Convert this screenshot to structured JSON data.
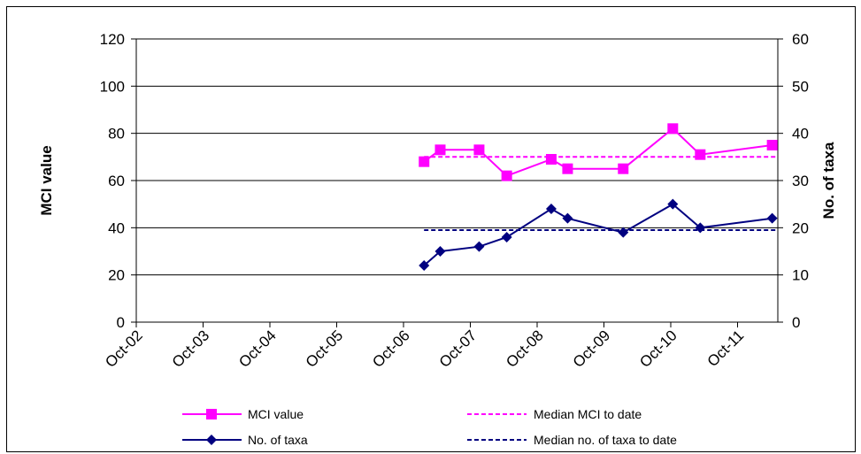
{
  "chart_data": {
    "type": "line",
    "x_categories": [
      "Oct-02",
      "Oct-03",
      "Oct-04",
      "Oct-05",
      "Oct-06",
      "Oct-07",
      "Oct-08",
      "Oct-09",
      "Oct-10",
      "Oct-11"
    ],
    "x_range": [
      "2002-10-01",
      "2012-06-01"
    ],
    "y_left": {
      "label": "MCI value",
      "ticks": [
        "0",
        "20",
        "40",
        "60",
        "80",
        "100",
        "120"
      ],
      "ylim": [
        0,
        120
      ]
    },
    "y_right": {
      "label": "No. of taxa",
      "ticks": [
        "0",
        "10",
        "20",
        "30",
        "40",
        "50",
        "60"
      ],
      "ylim": [
        0,
        60
      ]
    },
    "grid": "horizontal",
    "legend_position": "bottom",
    "series": [
      {
        "name": "MCI value",
        "axis": "left",
        "color": "#ff00ff",
        "marker": "square",
        "line": "solid",
        "points": [
          {
            "x": "2007-02-01",
            "y": 68
          },
          {
            "x": "2007-05-01",
            "y": 73
          },
          {
            "x": "2007-12-01",
            "y": 73
          },
          {
            "x": "2008-05-01",
            "y": 62
          },
          {
            "x": "2009-01-01",
            "y": 69
          },
          {
            "x": "2009-04-01",
            "y": 65
          },
          {
            "x": "2010-02-01",
            "y": 65
          },
          {
            "x": "2010-11-01",
            "y": 82
          },
          {
            "x": "2011-04-01",
            "y": 71
          },
          {
            "x": "2012-05-01",
            "y": 75
          }
        ]
      },
      {
        "name": "Median MCI to date",
        "axis": "left",
        "color": "#ff00ff",
        "marker": "none",
        "line": "dashed",
        "points": [
          {
            "x": "2007-02-01",
            "y": 70
          },
          {
            "x": "2012-06-01",
            "y": 70
          }
        ]
      },
      {
        "name": "No. of taxa",
        "axis": "right",
        "color": "#000080",
        "marker": "diamond",
        "line": "solid",
        "points": [
          {
            "x": "2007-02-01",
            "y": 12
          },
          {
            "x": "2007-05-01",
            "y": 15
          },
          {
            "x": "2007-12-01",
            "y": 16
          },
          {
            "x": "2008-05-01",
            "y": 18
          },
          {
            "x": "2009-01-01",
            "y": 24
          },
          {
            "x": "2009-04-01",
            "y": 22
          },
          {
            "x": "2010-02-01",
            "y": 19
          },
          {
            "x": "2010-11-01",
            "y": 25
          },
          {
            "x": "2011-04-01",
            "y": 20
          },
          {
            "x": "2012-05-01",
            "y": 22
          }
        ]
      },
      {
        "name": "Median no. of taxa to date",
        "axis": "right",
        "color": "#000080",
        "marker": "none",
        "line": "dashed",
        "points": [
          {
            "x": "2007-02-01",
            "y": 19.5
          },
          {
            "x": "2012-06-01",
            "y": 19.5
          }
        ]
      }
    ]
  }
}
